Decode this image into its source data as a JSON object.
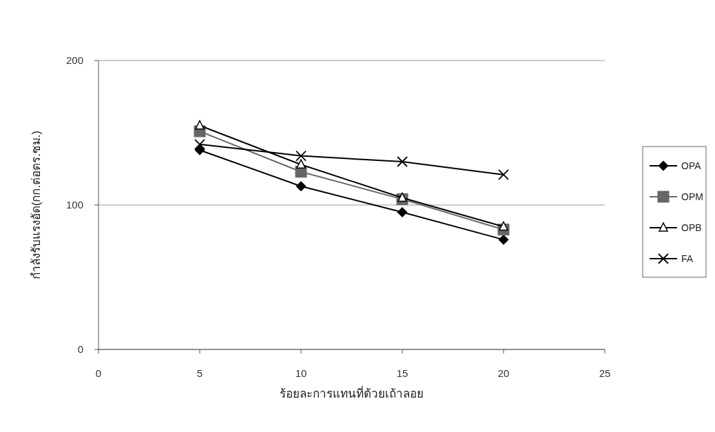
{
  "chart_data": {
    "type": "line",
    "xlabel": "ร้อยละการแทนที่ด้วยเถ้าลอย",
    "ylabel": "กำลังรับแรงอัด(กก.ต่อตร.ซม.)",
    "x": [
      5,
      10,
      15,
      20
    ],
    "xlim": [
      0,
      25
    ],
    "xticks": [
      0,
      5,
      10,
      15,
      20,
      25
    ],
    "ylim": [
      0,
      200
    ],
    "yticks": [
      0,
      100,
      200
    ],
    "grid": "y",
    "legend": "right",
    "series": [
      {
        "name": "OPA",
        "color": "#000000",
        "marker": "diamond",
        "values": [
          138,
          113,
          95,
          76
        ]
      },
      {
        "name": "OPM",
        "color": "#666666",
        "marker": "square",
        "values": [
          151,
          123,
          104,
          83
        ]
      },
      {
        "name": "OPB",
        "color": "#000000",
        "marker": "triangle",
        "values": [
          155,
          128,
          105,
          85
        ]
      },
      {
        "name": "FA",
        "color": "#000000",
        "marker": "cross",
        "values": [
          142,
          134,
          130,
          121
        ]
      }
    ]
  }
}
